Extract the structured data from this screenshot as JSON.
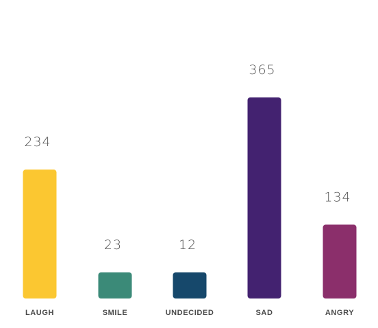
{
  "chart_data": {
    "type": "bar",
    "categories": [
      "LAUGH",
      "SMILE",
      "UNDECIDED",
      "SAD",
      "ANGRY"
    ],
    "values": [
      234,
      23,
      12,
      365,
      134
    ],
    "colors": [
      "#fbc731",
      "#3b8a78",
      "#16486b",
      "#432270",
      "#8b2f6b"
    ],
    "data_labels": [
      "234",
      "23",
      "12",
      "365",
      "134"
    ],
    "ylim": [
      0,
      365
    ],
    "grid": false,
    "legend": "none"
  }
}
